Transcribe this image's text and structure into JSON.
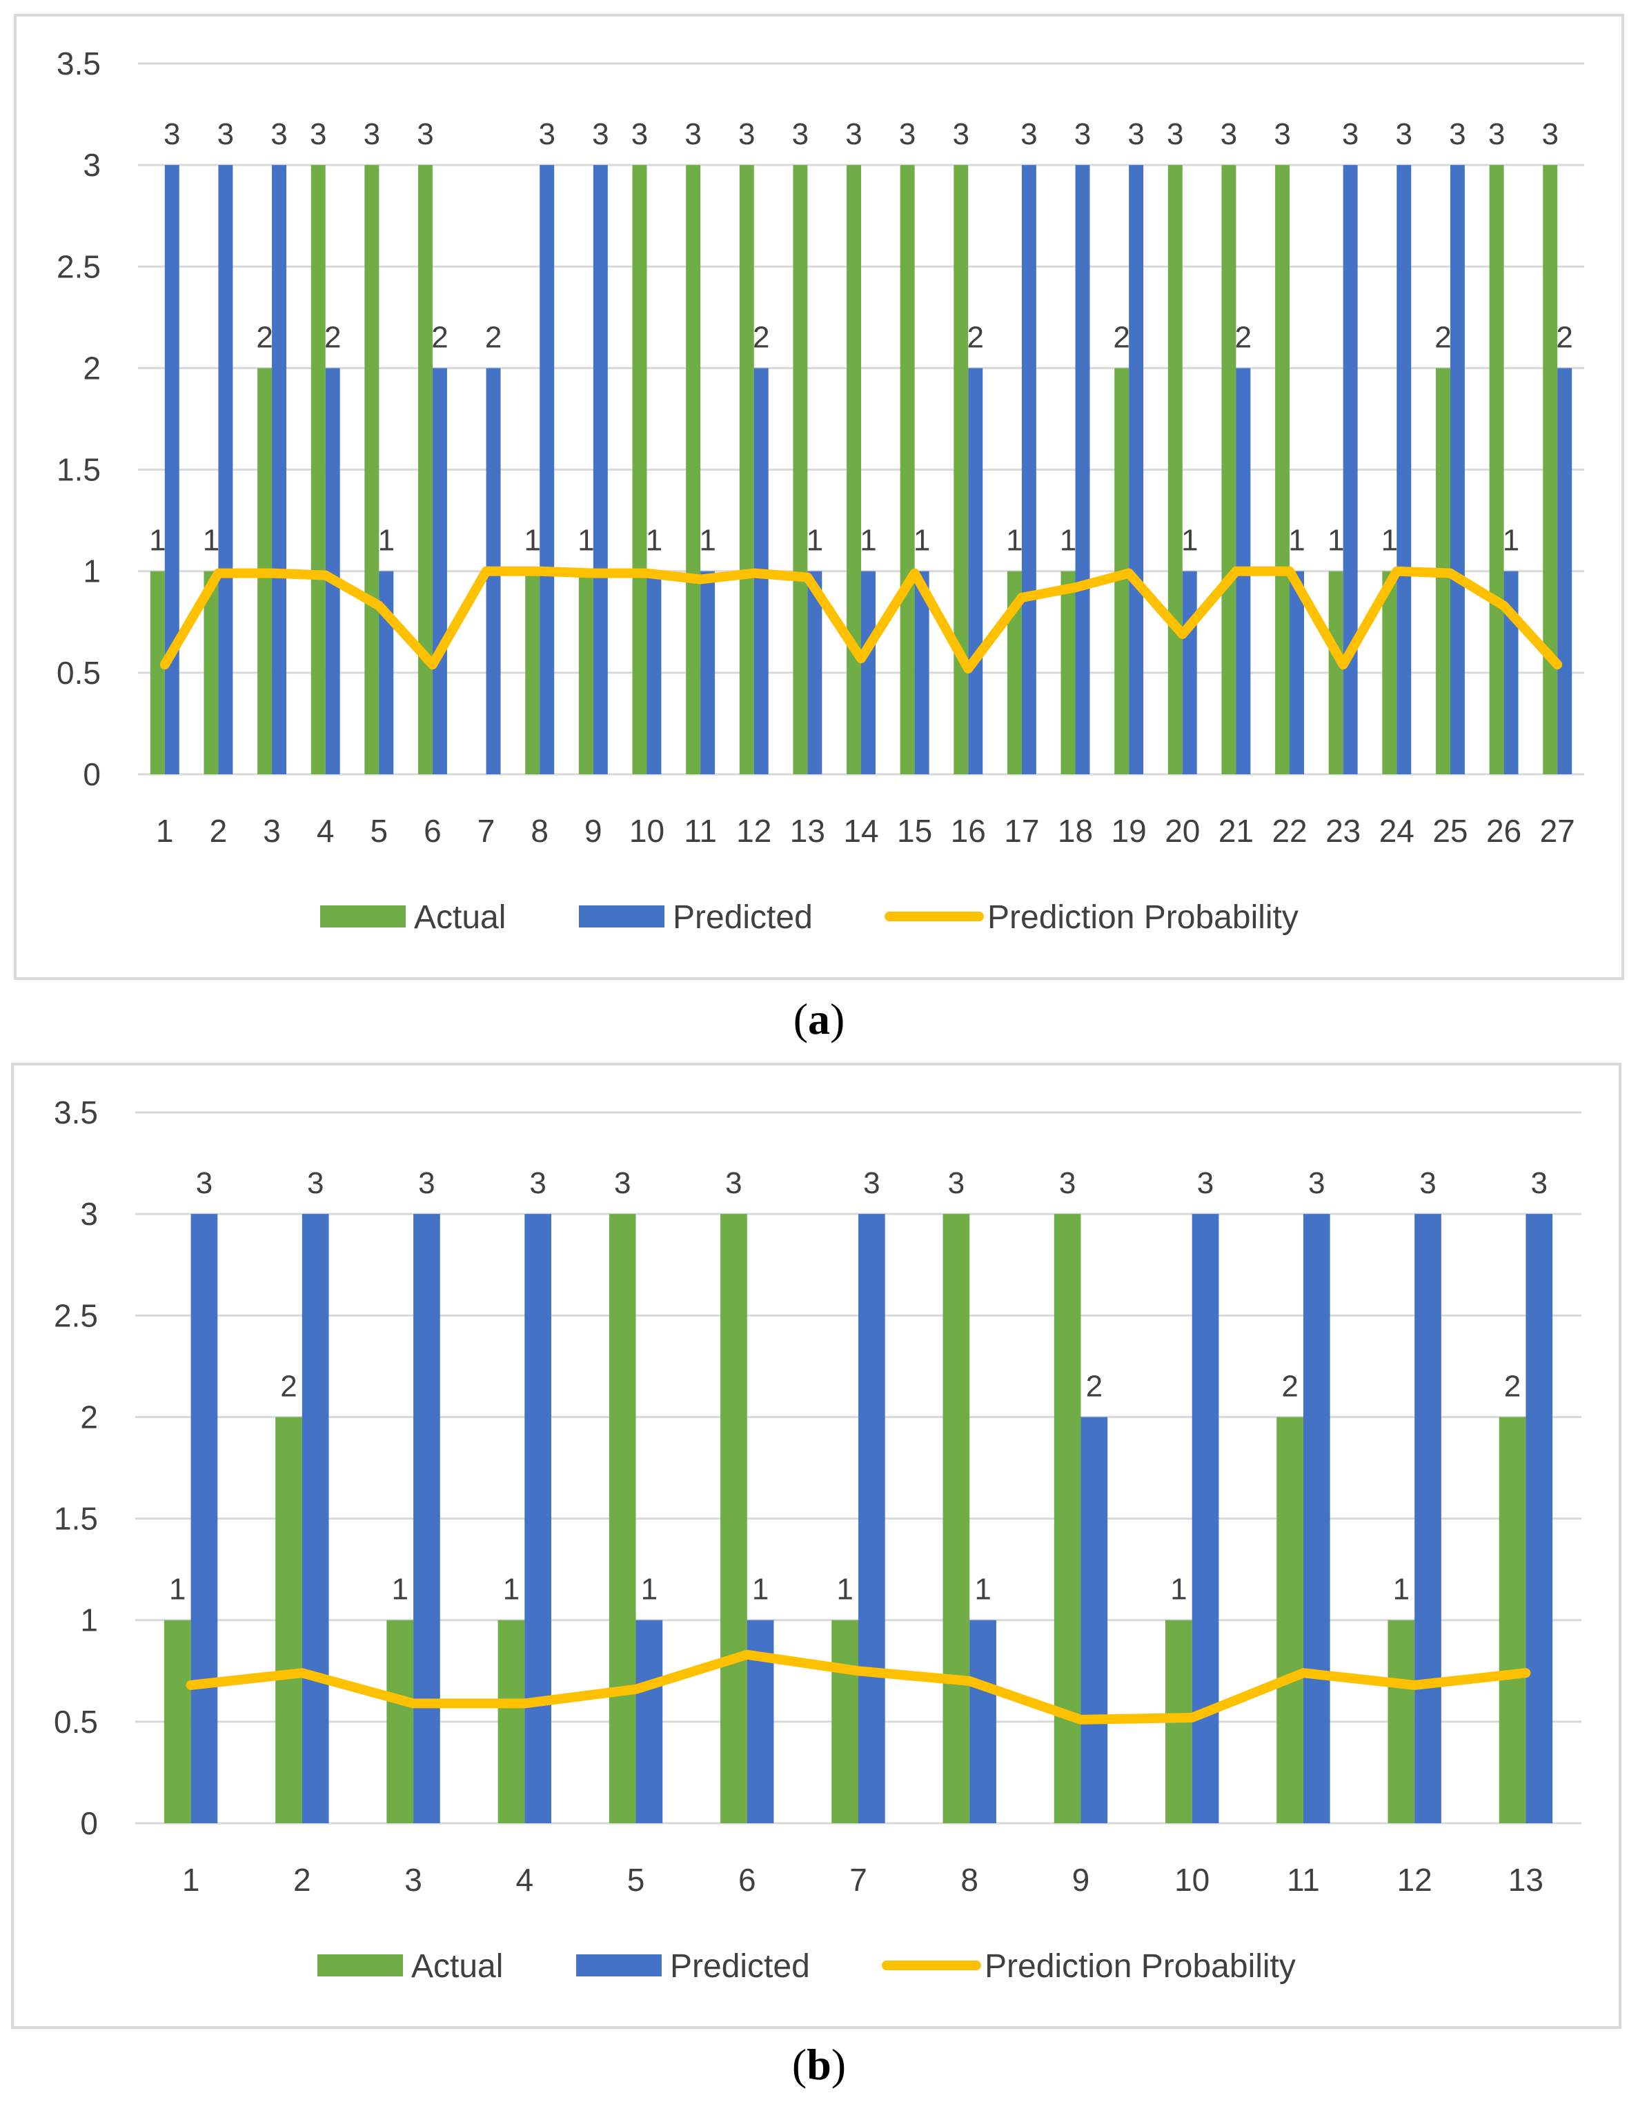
{
  "colors": {
    "actual": "#70ad47",
    "predicted": "#4472c4",
    "probability": "#ffc000",
    "grid": "#d9d9d9",
    "text": "#404040"
  },
  "chart_data": [
    {
      "type": "bar",
      "panel_label": "a",
      "categories": [
        "1",
        "2",
        "3",
        "4",
        "5",
        "6",
        "7",
        "8",
        "9",
        "10",
        "11",
        "12",
        "13",
        "14",
        "15",
        "16",
        "17",
        "18",
        "19",
        "20",
        "21",
        "22",
        "23",
        "24",
        "25",
        "26",
        "27"
      ],
      "yticks": [
        "0",
        "0.5",
        "1",
        "1.5",
        "2",
        "2.5",
        "3",
        "3.5"
      ],
      "ylim": [
        0,
        3.5
      ],
      "grid": true,
      "legend_position": "bottom",
      "series": [
        {
          "name": "Actual",
          "kind": "bar",
          "values": [
            1,
            1,
            2,
            3,
            3,
            3,
            0,
            1,
            1,
            3,
            3,
            3,
            3,
            3,
            3,
            3,
            1,
            1,
            2,
            3,
            3,
            3,
            1,
            1,
            2,
            3,
            3
          ]
        },
        {
          "name": "Predicted",
          "kind": "bar",
          "values": [
            3,
            3,
            3,
            2,
            1,
            2,
            2,
            3,
            3,
            1,
            1,
            2,
            1,
            1,
            1,
            2,
            3,
            3,
            3,
            1,
            2,
            1,
            3,
            3,
            3,
            1,
            2
          ]
        },
        {
          "name": "Prediction Probability",
          "kind": "line",
          "values": [
            0.54,
            0.99,
            0.99,
            0.98,
            0.83,
            0.54,
            1.0,
            1.0,
            0.99,
            0.99,
            0.96,
            0.99,
            0.97,
            0.57,
            0.99,
            0.52,
            0.87,
            0.92,
            0.99,
            0.69,
            1.0,
            1.0,
            0.54,
            1.0,
            0.99,
            0.83,
            0.54
          ]
        }
      ]
    },
    {
      "type": "bar",
      "panel_label": "b",
      "categories": [
        "1",
        "2",
        "3",
        "4",
        "5",
        "6",
        "7",
        "8",
        "9",
        "10",
        "11",
        "12",
        "13"
      ],
      "yticks": [
        "0",
        "0.5",
        "1",
        "1.5",
        "2",
        "2.5",
        "3",
        "3.5"
      ],
      "ylim": [
        0,
        3.5
      ],
      "grid": true,
      "legend_position": "bottom",
      "series": [
        {
          "name": "Actual",
          "kind": "bar",
          "values": [
            1,
            2,
            1,
            1,
            3,
            3,
            1,
            3,
            3,
            1,
            2,
            1,
            2
          ]
        },
        {
          "name": "Predicted",
          "kind": "bar",
          "values": [
            3,
            3,
            3,
            3,
            1,
            1,
            3,
            1,
            2,
            3,
            3,
            3,
            3
          ]
        },
        {
          "name": "Prediction Probability",
          "kind": "line",
          "values": [
            0.68,
            0.74,
            0.59,
            0.59,
            0.66,
            0.83,
            0.75,
            0.7,
            0.51,
            0.52,
            0.74,
            0.68,
            0.74
          ]
        }
      ]
    }
  ]
}
